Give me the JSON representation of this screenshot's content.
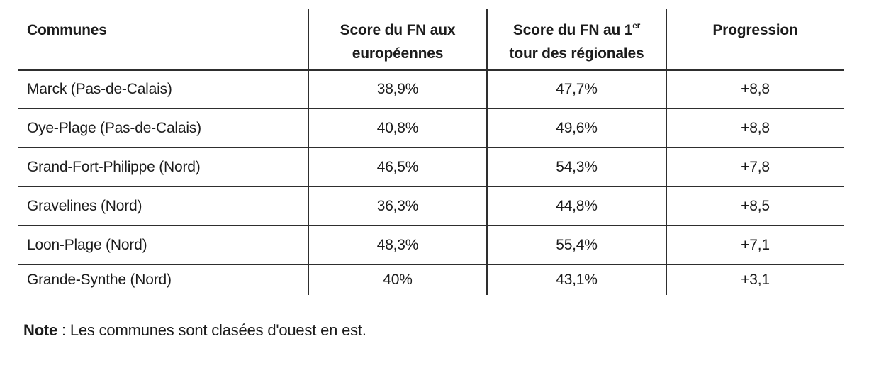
{
  "chart_data": {
    "type": "table",
    "columns": [
      "Communes",
      "Score du FN aux européennes",
      "Score du FN au 1er tour des régionales",
      "Progression"
    ],
    "rows": [
      [
        "Marck (Pas-de-Calais)",
        "38,9%",
        "47,7%",
        "+8,8"
      ],
      [
        "Oye-Plage (Pas-de-Calais)",
        "40,8%",
        "49,6%",
        "+8,8"
      ],
      [
        "Grand-Fort-Philippe (Nord)",
        "46,5%",
        "54,3%",
        "+7,8"
      ],
      [
        "Gravelines (Nord)",
        "36,3%",
        "44,8%",
        "+8,5"
      ],
      [
        "Loon-Plage (Nord)",
        "48,3%",
        "55,4%",
        "+7,1"
      ],
      [
        "Grande-Synthe (Nord)",
        "40%",
        "43,1%",
        "+3,1"
      ]
    ],
    "note": "Note : Les communes sont clasées d'ouest en est."
  },
  "header": {
    "col1": "Communes",
    "col2_line1": "Score du FN aux",
    "col2_line2": "européennes",
    "col3_line1": "Score du FN au 1",
    "col3_sup": "er",
    "col3_line2": "tour des régionales",
    "col4": "Progression"
  },
  "note": {
    "label": "Note",
    "body": " : Les communes sont clasées d'ouest en est."
  },
  "colors": {
    "text": "#1c1c1c",
    "rule": "#2e2e2e",
    "background": "#ffffff"
  }
}
